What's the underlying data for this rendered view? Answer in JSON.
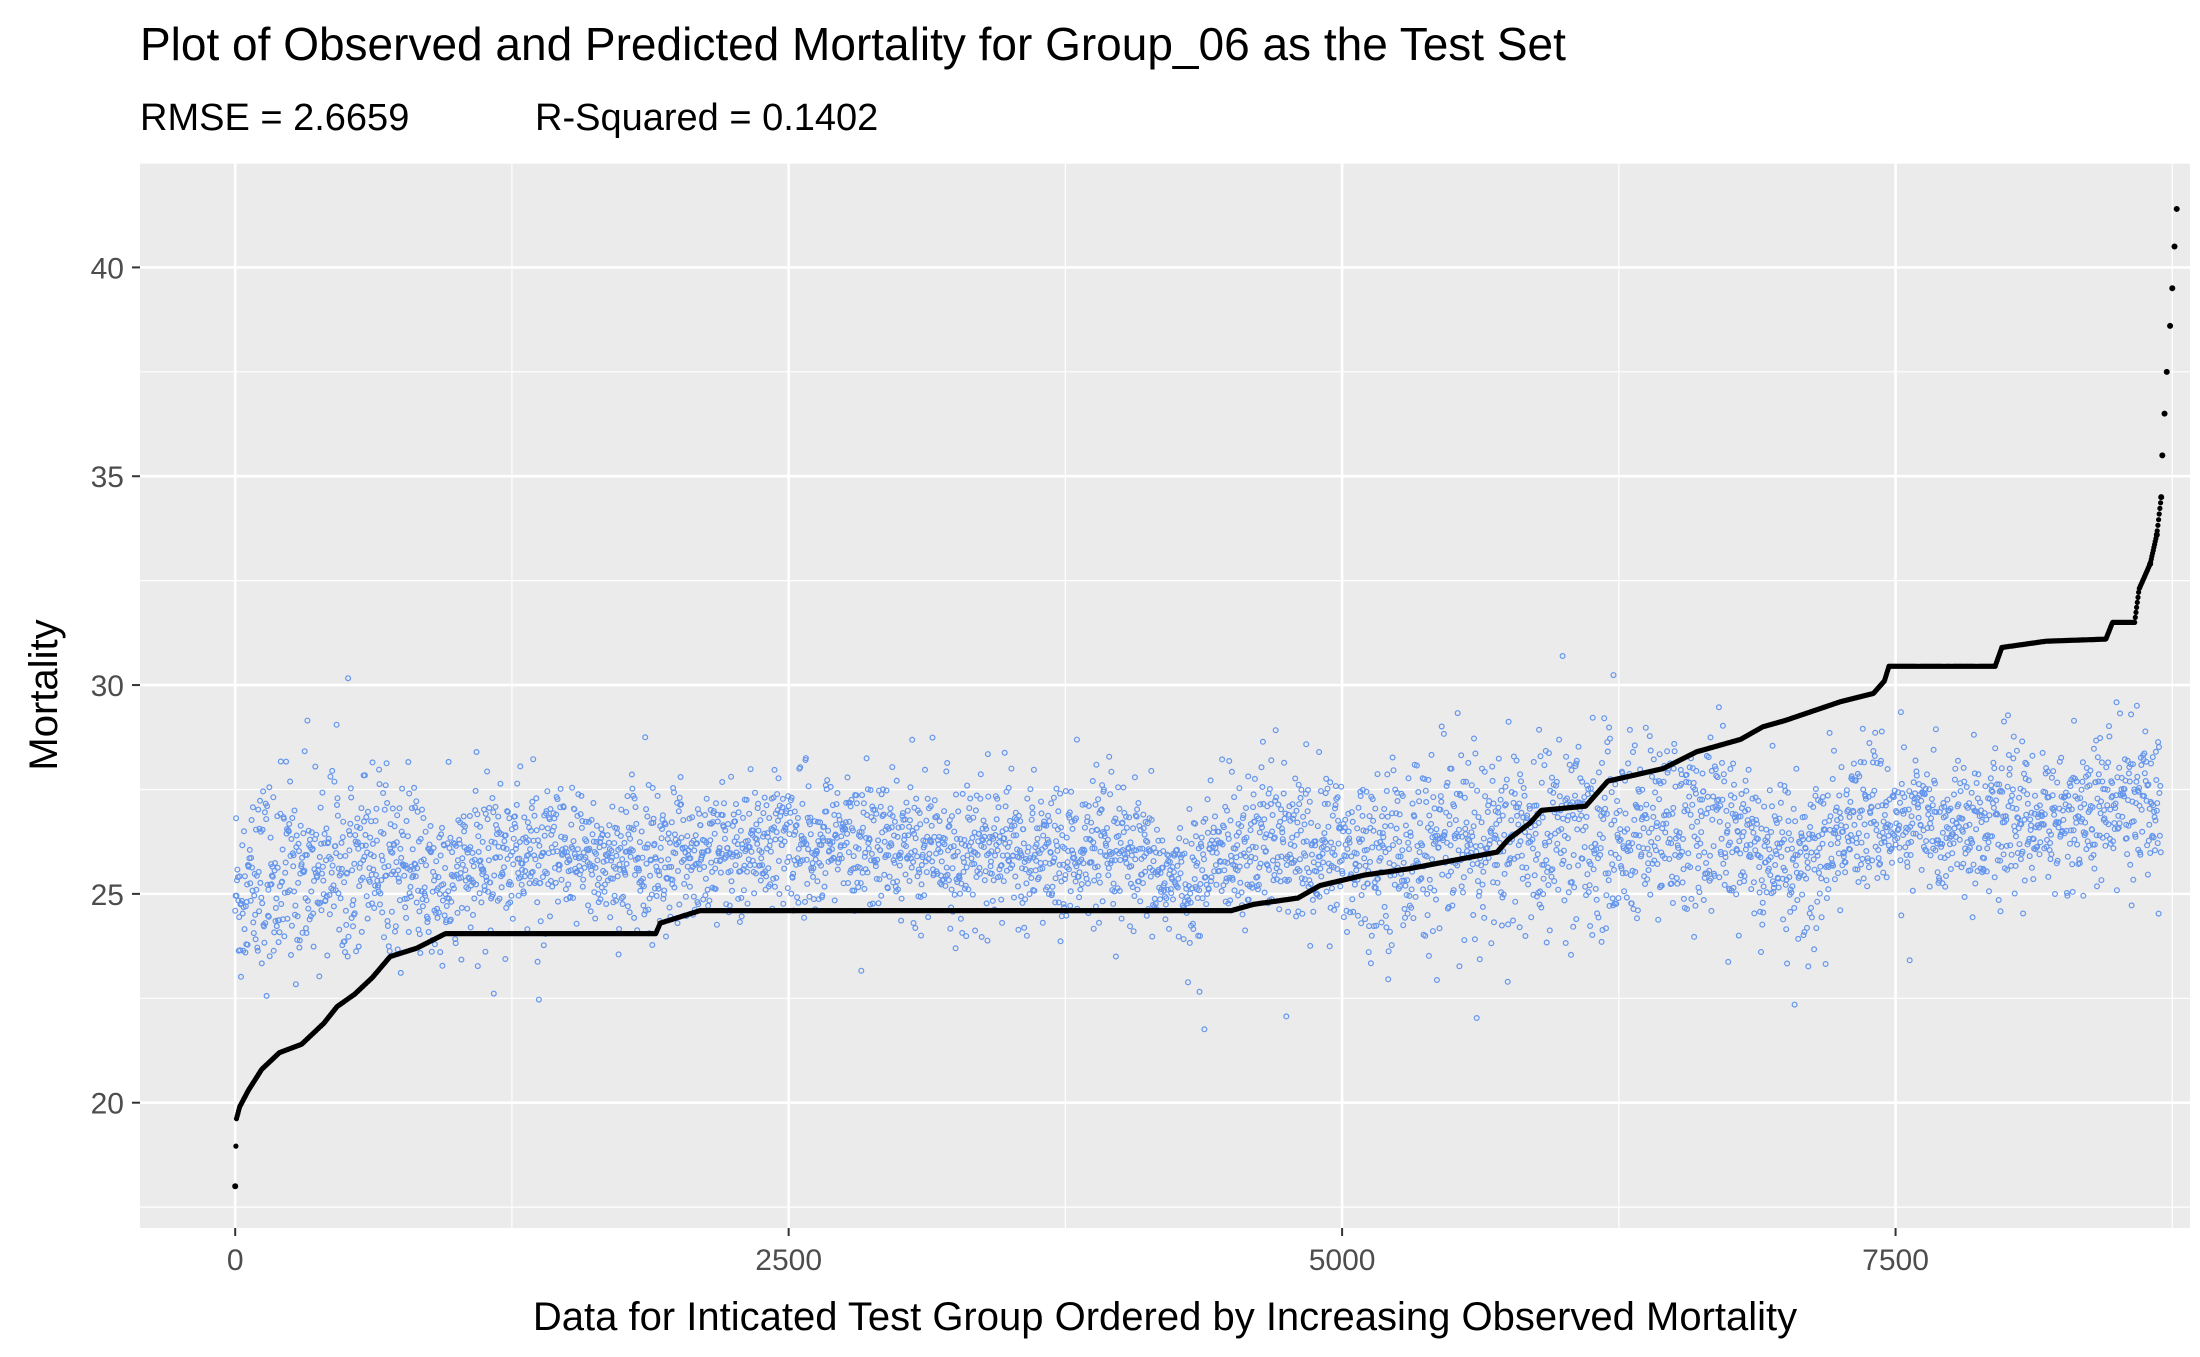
{
  "chart_data": {
    "type": "scatter",
    "title": "Plot of Observed and Predicted Mortality for Group_06 as the Test Set",
    "subtitle_rmse": "RMSE = 2.6659",
    "subtitle_r2": "R-Squared = 0.1402",
    "xlabel": "Data for Inticated Test Group Ordered by Increasing Observed Mortality",
    "ylabel": "Mortality",
    "xlim": [
      -430,
      8830
    ],
    "ylim": [
      17,
      42.5
    ],
    "x_ticks": [
      0,
      2500,
      5000,
      7500
    ],
    "x_tick_labels": [
      "0",
      "2500",
      "5000",
      "7500"
    ],
    "y_ticks": [
      20,
      25,
      30,
      35,
      40
    ],
    "y_tick_labels": [
      "20",
      "25",
      "30",
      "35",
      "40"
    ],
    "grid": true,
    "background": "#ebebeb",
    "n_points": 8700,
    "observed_curve": [
      [
        0,
        18.0
      ],
      [
        5,
        19.6
      ],
      [
        20,
        19.9
      ],
      [
        60,
        20.3
      ],
      [
        120,
        20.8
      ],
      [
        200,
        21.2
      ],
      [
        300,
        21.4
      ],
      [
        400,
        21.9
      ],
      [
        460,
        22.3
      ],
      [
        540,
        22.6
      ],
      [
        620,
        23.0
      ],
      [
        700,
        23.5
      ],
      [
        820,
        23.7
      ],
      [
        950,
        24.05
      ],
      [
        1900,
        24.05
      ],
      [
        1920,
        24.3
      ],
      [
        2100,
        24.6
      ],
      [
        4500,
        24.6
      ],
      [
        4600,
        24.75
      ],
      [
        4800,
        24.9
      ],
      [
        4900,
        25.2
      ],
      [
        5100,
        25.45
      ],
      [
        5300,
        25.6
      ],
      [
        5500,
        25.8
      ],
      [
        5700,
        26.0
      ],
      [
        5750,
        26.3
      ],
      [
        5850,
        26.7
      ],
      [
        5900,
        27.0
      ],
      [
        6100,
        27.1
      ],
      [
        6200,
        27.7
      ],
      [
        6450,
        28.0
      ],
      [
        6600,
        28.4
      ],
      [
        6800,
        28.7
      ],
      [
        6900,
        29.0
      ],
      [
        7000,
        29.15
      ],
      [
        7250,
        29.6
      ],
      [
        7400,
        29.8
      ],
      [
        7450,
        30.1
      ],
      [
        7470,
        30.45
      ],
      [
        7950,
        30.45
      ],
      [
        7980,
        30.9
      ],
      [
        8180,
        31.05
      ],
      [
        8450,
        31.1
      ],
      [
        8480,
        31.5
      ],
      [
        8580,
        31.5
      ],
      [
        8600,
        32.3
      ],
      [
        8650,
        32.9
      ],
      [
        8680,
        33.6
      ],
      [
        8700,
        34.5
      ],
      [
        8705,
        35.5
      ],
      [
        8715,
        36.5
      ],
      [
        8725,
        37.5
      ],
      [
        8740,
        38.6
      ],
      [
        8750,
        39.5
      ],
      [
        8760,
        40.5
      ],
      [
        8770,
        41.4
      ]
    ],
    "predicted_bands": [
      [
        0,
        25.0,
        1.3
      ],
      [
        300,
        25.6,
        1.1
      ],
      [
        600,
        26.2,
        1.0
      ],
      [
        900,
        25.0,
        0.9
      ],
      [
        1200,
        26.0,
        0.9
      ],
      [
        1600,
        25.8,
        0.8
      ],
      [
        2000,
        25.9,
        0.8
      ],
      [
        2500,
        26.3,
        0.8
      ],
      [
        3000,
        26.1,
        0.8
      ],
      [
        3500,
        26.0,
        0.8
      ],
      [
        4000,
        25.9,
        0.8
      ],
      [
        4300,
        25.2,
        0.7
      ],
      [
        4500,
        26.3,
        0.9
      ],
      [
        5000,
        26.0,
        1.0
      ],
      [
        5600,
        26.2,
        1.1
      ],
      [
        6000,
        26.4,
        1.2
      ],
      [
        6400,
        26.5,
        1.1
      ],
      [
        6700,
        26.6,
        1.0
      ],
      [
        7100,
        25.6,
        1.1
      ],
      [
        7300,
        26.8,
        0.8
      ],
      [
        7800,
        26.6,
        0.8
      ],
      [
        8300,
        26.9,
        0.8
      ],
      [
        8700,
        27.2,
        1.0
      ]
    ],
    "series": [
      {
        "key": "predicted",
        "color": "#6495ED"
      },
      {
        "key": "observed",
        "color": "#000000"
      }
    ]
  }
}
